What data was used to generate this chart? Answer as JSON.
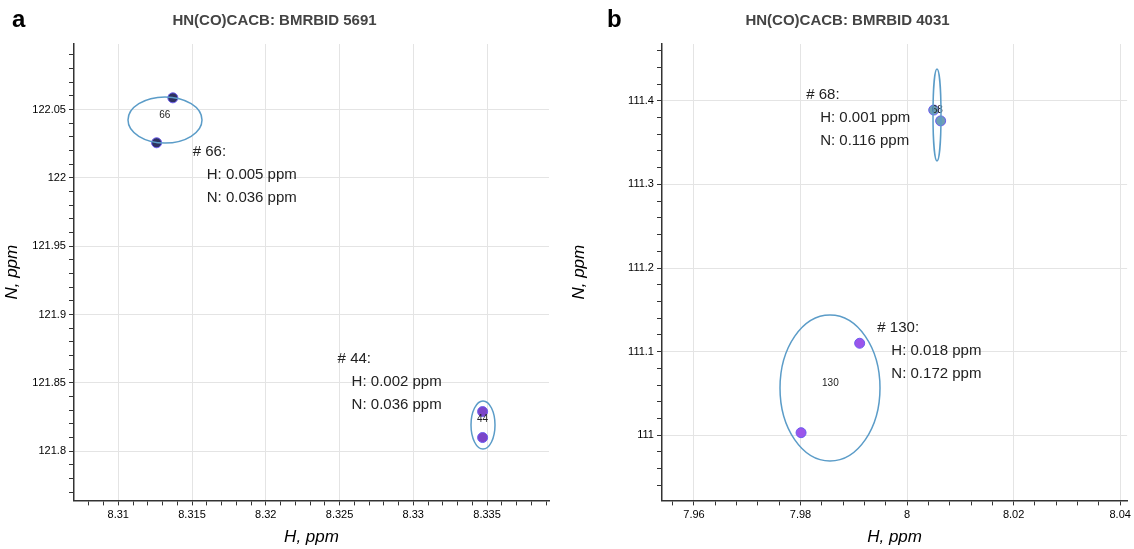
{
  "chart_data": [
    {
      "type": "scatter",
      "title": "HN(CO)CACB: BMRBID 5691",
      "xlabel": "H, ppm",
      "ylabel": "N, ppm",
      "series": [
        {
          "color": "#2e3160",
          "x": [
            8.3137,
            8.3126
          ],
          "values": [
            122.0586,
            122.0257
          ]
        },
        {
          "color": "#7b45c8",
          "x": [
            8.3347,
            8.3347
          ],
          "values": [
            121.829,
            121.81
          ]
        }
      ],
      "xlim": [
        8.307,
        8.3392
      ],
      "ylim": [
        121.764,
        122.098
      ],
      "xticks": [
        {
          "value": 8.308,
          "label": null
        },
        {
          "value": 8.309,
          "label": null
        },
        8.31,
        {
          "value": 8.311,
          "label": null
        },
        {
          "value": 8.312,
          "label": null
        },
        {
          "value": 8.313,
          "label": null
        },
        {
          "value": 8.314,
          "label": null
        },
        8.315,
        {
          "value": 8.316,
          "label": null
        },
        {
          "value": 8.317,
          "label": null
        },
        {
          "value": 8.318,
          "label": null
        },
        {
          "value": 8.319,
          "label": null
        },
        8.32,
        {
          "value": 8.321,
          "label": null
        },
        {
          "value": 8.322,
          "label": null
        },
        {
          "value": 8.323,
          "label": null
        },
        {
          "value": 8.324,
          "label": null
        },
        8.325,
        {
          "value": 8.326,
          "label": null
        },
        {
          "value": 8.327,
          "label": null
        },
        {
          "value": 8.328,
          "label": null
        },
        {
          "value": 8.329,
          "label": null
        },
        8.33,
        {
          "value": 8.331,
          "label": null
        },
        {
          "value": 8.332,
          "label": null
        },
        {
          "value": 8.333,
          "label": null
        },
        {
          "value": 8.334,
          "label": null
        },
        8.335,
        {
          "value": 8.336,
          "label": null
        },
        {
          "value": 8.337,
          "label": null
        },
        {
          "value": 8.338,
          "label": null
        },
        {
          "value": 8.339,
          "label": null
        }
      ],
      "yticks": [
        {
          "value": 121.77,
          "label": null
        },
        {
          "value": 121.78,
          "label": null
        },
        {
          "value": 121.79,
          "label": null
        },
        121.8,
        {
          "value": 121.81,
          "label": null
        },
        {
          "value": 121.82,
          "label": null
        },
        {
          "value": 121.83,
          "label": null
        },
        {
          "value": 121.84,
          "label": null
        },
        121.85,
        {
          "value": 121.86,
          "label": null
        },
        {
          "value": 121.87,
          "label": null
        },
        {
          "value": 121.88,
          "label": null
        },
        {
          "value": 121.89,
          "label": null
        },
        121.9,
        {
          "value": 121.91,
          "label": null
        },
        {
          "value": 121.92,
          "label": null
        },
        {
          "value": 121.93,
          "label": null
        },
        {
          "value": 121.94,
          "label": null
        },
        121.95,
        {
          "value": 121.96,
          "label": null
        },
        {
          "value": 121.97,
          "label": null
        },
        {
          "value": 121.98,
          "label": null
        },
        {
          "value": 121.99,
          "label": null
        },
        122,
        {
          "value": 122.01,
          "label": null
        },
        {
          "value": 122.02,
          "label": null
        },
        {
          "value": 122.03,
          "label": null
        },
        {
          "value": 122.04,
          "label": null
        },
        122.05,
        {
          "value": 122.06,
          "label": null
        },
        {
          "value": 122.07,
          "label": null
        },
        {
          "value": 122.08,
          "label": null
        },
        {
          "value": 122.09,
          "label": null
        }
      ],
      "grid": true,
      "marker": "circle",
      "annotations": [
        "a",
        "66",
        "# 66:\nH: 0.005 ppm\nN: 0.036 ppm",
        "44",
        "# 44:\nH: 0.002 ppm\nN: 0.036 ppm"
      ]
    },
    {
      "type": "scatter",
      "title": "HN(CO)CACB: BMRBID 4031",
      "xlabel": "H, ppm",
      "ylabel": "N, ppm",
      "series": [
        {
          "color": "#6e9fb4",
          "x": [
            8.005,
            8.0063
          ],
          "values": [
            111.389,
            111.376
          ]
        },
        {
          "color": "#9b55ea",
          "x": [
            7.9911,
            7.9801
          ],
          "values": [
            111.11,
            111.003
          ]
        }
      ],
      "xlim": [
        7.954,
        8.0413
      ],
      "ylim": [
        110.922,
        111.468
      ],
      "xticks": [
        {
          "value": 7.956,
          "label": null
        },
        7.96,
        {
          "value": 7.964,
          "label": null
        },
        {
          "value": 7.968,
          "label": null
        },
        {
          "value": 7.972,
          "label": null
        },
        {
          "value": 7.976,
          "label": null
        },
        7.98,
        {
          "value": 7.984,
          "label": null
        },
        {
          "value": 7.988,
          "label": null
        },
        {
          "value": 7.992,
          "label": null
        },
        {
          "value": 7.996,
          "label": null
        },
        8,
        {
          "value": 8.004,
          "label": null
        },
        {
          "value": 8.008,
          "label": null
        },
        {
          "value": 8.012,
          "label": null
        },
        {
          "value": 8.016,
          "label": null
        },
        8.02,
        {
          "value": 8.024,
          "label": null
        },
        {
          "value": 8.028,
          "label": null
        },
        {
          "value": 8.032,
          "label": null
        },
        {
          "value": 8.036,
          "label": null
        },
        8.04
      ],
      "yticks": [
        {
          "value": 110.94,
          "label": null
        },
        {
          "value": 110.96,
          "label": null
        },
        {
          "value": 110.98,
          "label": null
        },
        111,
        {
          "value": 111.02,
          "label": null
        },
        {
          "value": 111.04,
          "label": null
        },
        {
          "value": 111.06,
          "label": null
        },
        {
          "value": 111.08,
          "label": null
        },
        111.1,
        {
          "value": 111.12,
          "label": null
        },
        {
          "value": 111.14,
          "label": null
        },
        {
          "value": 111.16,
          "label": null
        },
        {
          "value": 111.18,
          "label": null
        },
        111.2,
        {
          "value": 111.22,
          "label": null
        },
        {
          "value": 111.24,
          "label": null
        },
        {
          "value": 111.26,
          "label": null
        },
        {
          "value": 111.28,
          "label": null
        },
        111.3,
        {
          "value": 111.32,
          "label": null
        },
        {
          "value": 111.34,
          "label": null
        },
        {
          "value": 111.36,
          "label": null
        },
        {
          "value": 111.38,
          "label": null
        },
        111.4,
        {
          "value": 111.42,
          "label": null
        },
        {
          "value": 111.44,
          "label": null
        },
        {
          "value": 111.46,
          "label": null
        }
      ],
      "grid": true,
      "marker": "circle",
      "annotations": [
        "b",
        "68",
        "# 68:\nH: 0.001 ppm\nN: 0.116 ppm",
        "130",
        "# 130:\nH: 0.018 ppm\nN: 0.172 ppm"
      ]
    }
  ]
}
